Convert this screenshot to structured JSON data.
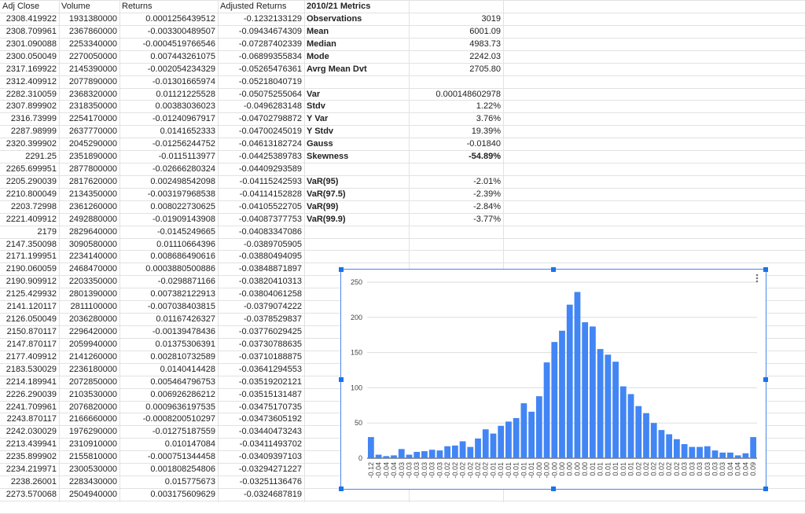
{
  "table": {
    "headers": [
      "Adj Close",
      "Volume",
      "Returns",
      "Adjusted Returns",
      "2010/21 Metrics"
    ],
    "rows": [
      [
        "2308.419922",
        "1931380000",
        "0.0001256439512",
        "-0.1232133129"
      ],
      [
        "2308.709961",
        "2367860000",
        "-0.003300489507",
        "-0.09434674309"
      ],
      [
        "2301.090088",
        "2253340000",
        "-0.0004519766546",
        "-0.07287402339"
      ],
      [
        "2300.050049",
        "2270050000",
        "0.007443261075",
        "-0.06899355834"
      ],
      [
        "2317.169922",
        "2145390000",
        "-0.002054234329",
        "-0.05265476361"
      ],
      [
        "2312.409912",
        "2077890000",
        "-0.01301665974",
        "-0.05218040719"
      ],
      [
        "2282.310059",
        "2368320000",
        "0.01121225528",
        "-0.05075255064"
      ],
      [
        "2307.899902",
        "2318350000",
        "0.00383036023",
        "-0.0496283148"
      ],
      [
        "2316.73999",
        "2254170000",
        "-0.01240967917",
        "-0.04702798872"
      ],
      [
        "2287.98999",
        "2637770000",
        "0.0141652333",
        "-0.04700245019"
      ],
      [
        "2320.399902",
        "2045290000",
        "-0.01256244752",
        "-0.04613182724"
      ],
      [
        "2291.25",
        "2351890000",
        "-0.0115113977",
        "-0.04425389783"
      ],
      [
        "2265.699951",
        "2877800000",
        "-0.02666280324",
        "-0.04409293589"
      ],
      [
        "2205.290039",
        "2817620000",
        "0.002498542098",
        "-0.04115242593"
      ],
      [
        "2210.800049",
        "2134350000",
        "-0.003197968538",
        "-0.04114152828"
      ],
      [
        "2203.72998",
        "2361260000",
        "0.008022730625",
        "-0.04105522705"
      ],
      [
        "2221.409912",
        "2492880000",
        "-0.01909143908",
        "-0.04087377753"
      ],
      [
        "2179",
        "2829640000",
        "-0.0145249665",
        "-0.04083347086"
      ],
      [
        "2147.350098",
        "3090580000",
        "0.01110664396",
        "-0.0389705905"
      ],
      [
        "2171.199951",
        "2234140000",
        "0.008686490616",
        "-0.03880494095"
      ],
      [
        "2190.060059",
        "2468470000",
        "0.0003880500886",
        "-0.03848871897"
      ],
      [
        "2190.909912",
        "2203350000",
        "-0.0298871166",
        "-0.03820410313"
      ],
      [
        "2125.429932",
        "2801390000",
        "0.007382122913",
        "-0.03804061258"
      ],
      [
        "2141.120117",
        "2811100000",
        "-0.007038403815",
        "-0.0379074222"
      ],
      [
        "2126.050049",
        "2036280000",
        "0.01167426327",
        "-0.0378529837"
      ],
      [
        "2150.870117",
        "2296420000",
        "-0.00139478436",
        "-0.03776029425"
      ],
      [
        "2147.870117",
        "2059940000",
        "0.01375306391",
        "-0.03730788635"
      ],
      [
        "2177.409912",
        "2141260000",
        "0.002810732589",
        "-0.03710188875"
      ],
      [
        "2183.530029",
        "2236180000",
        "0.0140414428",
        "-0.03641294553"
      ],
      [
        "2214.189941",
        "2072850000",
        "0.005464796753",
        "-0.03519202121"
      ],
      [
        "2226.290039",
        "2103530000",
        "0.006926286212",
        "-0.03515131487"
      ],
      [
        "2241.709961",
        "2076820000",
        "0.0009636197535",
        "-0.03475170735"
      ],
      [
        "2243.870117",
        "2166660000",
        "-0.0008200510297",
        "-0.03473605192"
      ],
      [
        "2242.030029",
        "1976290000",
        "-0.01275187559",
        "-0.03440473243"
      ],
      [
        "2213.439941",
        "2310910000",
        "0.010147084",
        "-0.03411493702"
      ],
      [
        "2235.899902",
        "2155810000",
        "-0.000751344458",
        "-0.03409397103"
      ],
      [
        "2234.219971",
        "2300530000",
        "0.001808254806",
        "-0.03294271227"
      ],
      [
        "2238.26001",
        "2283430000",
        "0.015775673",
        "-0.03251136476"
      ],
      [
        "2273.570068",
        "2504940000",
        "0.003175609629",
        "-0.0324687819"
      ]
    ],
    "metrics": [
      [
        {
          "label": "Observations",
          "value": "3019"
        },
        {
          "label": "Mean",
          "value": "6001.09"
        },
        {
          "label": "Median",
          "value": "4983.73"
        },
        {
          "label": "Mode",
          "value": "2242.03"
        },
        {
          "label": "Avrg Mean Dvt",
          "value": "2705.80"
        }
      ],
      [
        {
          "label": "Var",
          "value": "0.000148602978"
        },
        {
          "label": "Stdv",
          "value": "1.22%"
        },
        {
          "label": "Y Var",
          "value": "3.76%"
        },
        {
          "label": "Y Stdv",
          "value": "19.39%"
        },
        {
          "label": "Gauss",
          "value": "-0.01840"
        },
        {
          "label": "Skewness",
          "value": "-54.89%",
          "bold": true
        }
      ],
      [
        {
          "label": "VaR(95)",
          "value": "-2.01%"
        },
        {
          "label": "VaR(97.5)",
          "value": "-2.39%"
        },
        {
          "label": "VaR(99)",
          "value": "-2.84%"
        },
        {
          "label": "VaR(99.9)",
          "value": "-3.77%"
        }
      ]
    ]
  },
  "chart_data": {
    "type": "bar",
    "categories": [
      "-0.12",
      "-0.04",
      "-0.04",
      "-0.04",
      "-0.03",
      "-0.03",
      "-0.03",
      "-0.03",
      "-0.03",
      "-0.03",
      "-0.02",
      "-0.02",
      "-0.02",
      "-0.02",
      "-0.02",
      "-0.02",
      "-0.01",
      "-0.01",
      "-0.01",
      "-0.01",
      "-0.01",
      "-0.01",
      "-0.00",
      "-0.00",
      "-0.00",
      "0.00",
      "0.00",
      "0.00",
      "0.00",
      "0.01",
      "0.01",
      "0.01",
      "0.01",
      "0.01",
      "0.01",
      "0.02",
      "0.02",
      "0.02",
      "0.02",
      "0.02",
      "0.02",
      "0.03",
      "0.03",
      "0.03",
      "0.03",
      "0.03",
      "0.03",
      "0.04",
      "0.04",
      "0.04",
      "0.09"
    ],
    "values": [
      30,
      5,
      3,
      4,
      13,
      5,
      9,
      10,
      12,
      11,
      17,
      18,
      24,
      16,
      28,
      41,
      35,
      46,
      52,
      57,
      78,
      66,
      88,
      136,
      165,
      181,
      218,
      236,
      193,
      187,
      155,
      147,
      137,
      102,
      91,
      74,
      64,
      50,
      40,
      34,
      27,
      20,
      16,
      16,
      17,
      11,
      8,
      8,
      4,
      7,
      30
    ],
    "color": "#4285f4",
    "ylim": [
      0,
      260
    ],
    "yticks": [
      0,
      50,
      100,
      150,
      200,
      250
    ],
    "grid": true
  }
}
